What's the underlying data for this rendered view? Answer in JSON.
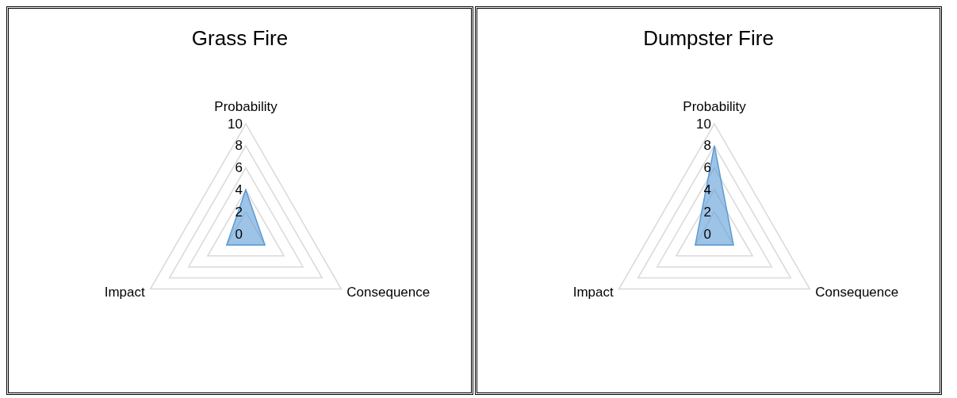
{
  "chart_data": [
    {
      "type": "radar",
      "title": "Grass Fire",
      "categories": [
        "Probability",
        "Consequence",
        "Impact"
      ],
      "ylim": [
        0,
        10
      ],
      "yticks": [
        0,
        2,
        4,
        6,
        8,
        10
      ],
      "grid": true,
      "legend": false,
      "series": [
        {
          "color": "#5b9bd5",
          "values": [
            4,
            2,
            2
          ]
        }
      ]
    },
    {
      "type": "radar",
      "title": "Dumpster Fire",
      "categories": [
        "Probability",
        "Consequence",
        "Impact"
      ],
      "ylim": [
        0,
        10
      ],
      "yticks": [
        0,
        2,
        4,
        6,
        8,
        10
      ],
      "grid": true,
      "legend": false,
      "series": [
        {
          "color": "#5b9bd5",
          "values": [
            8,
            2,
            2
          ]
        }
      ]
    }
  ]
}
